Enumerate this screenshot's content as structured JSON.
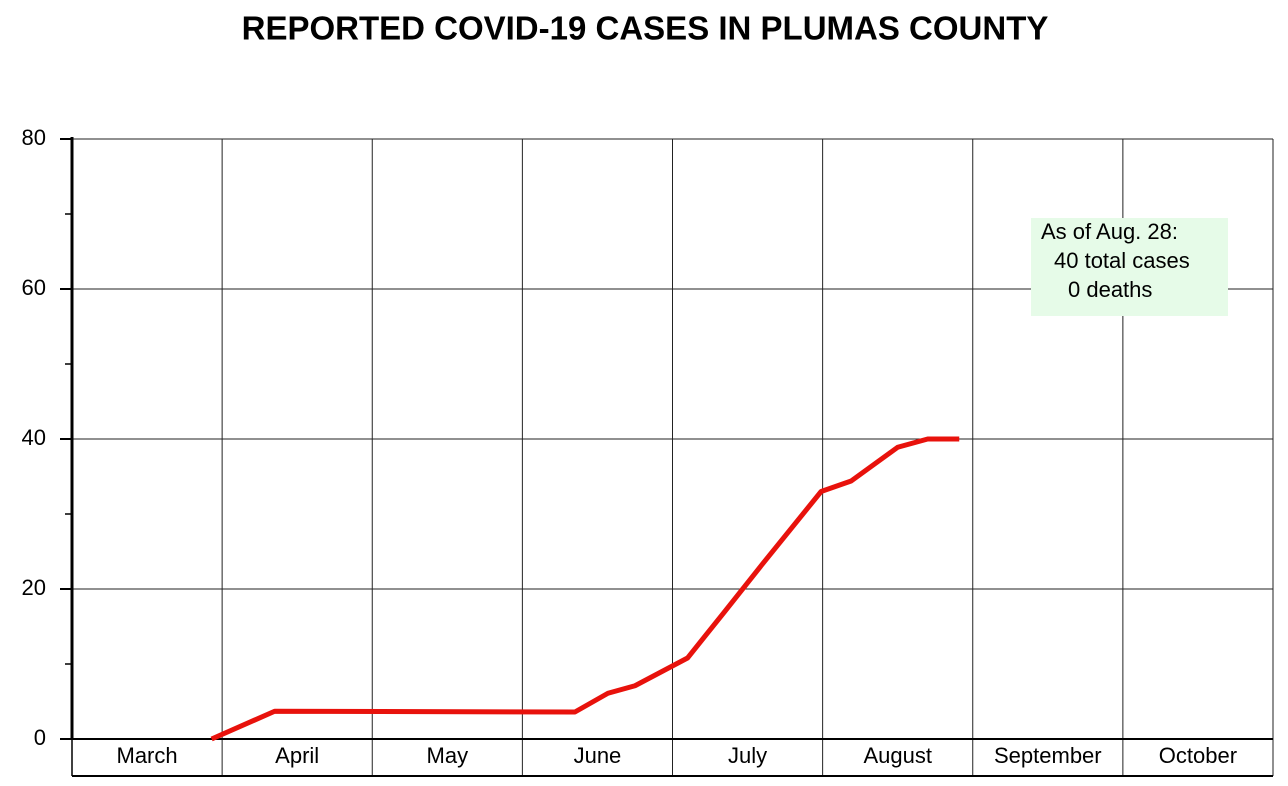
{
  "chart_data": {
    "type": "line",
    "title": "REPORTED  COVID-19  CASES  IN  PLUMAS  COUNTY",
    "categories": [
      "March",
      "April",
      "May",
      "June",
      "July",
      "August",
      "September",
      "October"
    ],
    "xlim": [
      0,
      8
    ],
    "ylim": [
      0,
      80
    ],
    "yticks": [
      0,
      20,
      40,
      60,
      80
    ],
    "minor_yticks": [
      10,
      30,
      50,
      70
    ],
    "grid": true,
    "series": [
      {
        "color": "#e8120c",
        "x": [
          0.93,
          1.35,
          3.35,
          3.57,
          3.75,
          4.1,
          4.34,
          4.59,
          4.99,
          5.19,
          5.5,
          5.7,
          5.91
        ],
        "values": [
          0,
          3.7,
          3.6,
          6.1,
          7.1,
          10.8,
          16.8,
          23.1,
          33,
          34.4,
          38.9,
          40,
          40
        ]
      }
    ],
    "annotation": {
      "lines": [
        "As of Aug. 28:",
        "40 total cases",
        "0 deaths"
      ],
      "color": "#e6fbe8"
    }
  }
}
